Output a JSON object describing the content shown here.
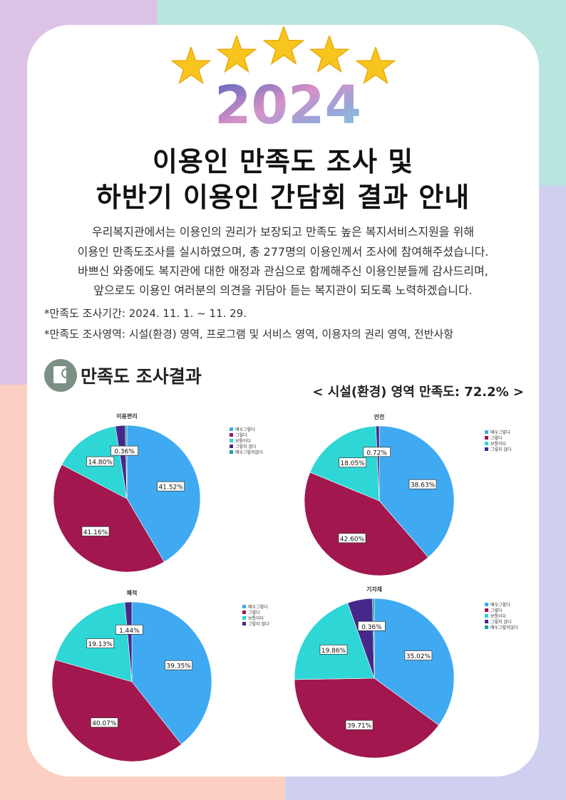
{
  "year": "2024",
  "title": [
    "이용인 만족도 조사 및",
    "하반기 이용인 간담회 결과 안내"
  ],
  "intro": [
    "우리복지관에서는 이용인의 권리가 보장되고 만족도 높은 복지서비스지원을 위해",
    "이용인 만족도조사를 실시하였으며, 총 277명의 이용인께서 조사에 참여해주셨습니다.",
    "바쁘신 와중에도 복지관에 대한 애정과 관심으로 함께해주신 이용인분들께 감사드리며,",
    "앞으로도 이용인 여러분의 의견을 귀담아 듣는 복지관이 되도록 노력하겠습니다."
  ],
  "details": [
    "*만족도 조사기간:  2024. 11. 1. ~ 11. 29.",
    "*만족도 조사영역:  시설(환경) 영역, 프로그램 및 서비스 영역, 이용자의 권리 영역, 전반사항"
  ],
  "section_title": "만족도 조사결과",
  "summary": "< 시설(환경) 영역 만족도: 72.2% >",
  "chart_data": [
    {
      "type": "pie",
      "title": "이용편리",
      "categories": [
        "매우그렇다",
        "그렇다",
        "보통이다",
        "그렇지 않다",
        "매우그렇지않다"
      ],
      "colors": [
        "#3faaf2",
        "#a1174e",
        "#2ed6d6",
        "#45288a",
        "#17a0a0"
      ],
      "values": [
        41.52,
        41.16,
        14.8,
        2.16,
        0.36
      ],
      "value_labels": [
        "41.52%",
        "41.16%",
        "14.80%",
        null,
        "0.36%"
      ]
    },
    {
      "type": "pie",
      "title": "안전",
      "categories": [
        "매우그렇다",
        "그렇다",
        "보통이다",
        "그렇지 않다"
      ],
      "colors": [
        "#3faaf2",
        "#a1174e",
        "#2ed6d6",
        "#45288a"
      ],
      "values": [
        38.63,
        42.6,
        18.05,
        0.72
      ],
      "value_labels": [
        "38.63%",
        "42.60%",
        "18.05%",
        "0.72%"
      ]
    },
    {
      "type": "pie",
      "title": "쾌적",
      "categories": [
        "매우그렇다",
        "그렇다",
        "보통이다",
        "그렇지 않다"
      ],
      "colors": [
        "#3faaf2",
        "#a1174e",
        "#2ed6d6",
        "#45288a"
      ],
      "values": [
        39.35,
        40.07,
        19.13,
        1.44
      ],
      "value_labels": [
        "39.35%",
        "40.07%",
        "19.13%",
        "1.44%"
      ]
    },
    {
      "type": "pie",
      "title": "기자재",
      "categories": [
        "매우그렇다",
        "그렇다",
        "보통이다",
        "그렇지 않다",
        "매우그렇지않다"
      ],
      "colors": [
        "#3faaf2",
        "#a1174e",
        "#2ed6d6",
        "#45288a",
        "#17a0a0"
      ],
      "values": [
        35.02,
        39.71,
        19.86,
        5.05,
        0.36
      ],
      "value_labels": [
        "35.02%",
        "39.71%",
        "19.86%",
        null,
        "0.36%"
      ]
    }
  ]
}
